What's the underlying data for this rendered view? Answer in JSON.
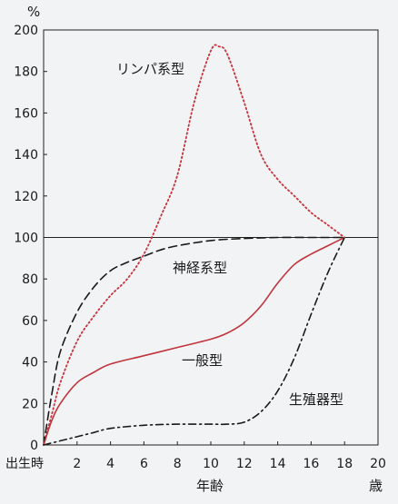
{
  "chart_data": {
    "type": "line",
    "ylabel_unit": "%",
    "xlabel": "年齢",
    "x_unit_label": "歳",
    "x_origin_label": "出生時",
    "xlim": [
      0,
      20
    ],
    "ylim": [
      0,
      200
    ],
    "x_ticks": [
      2,
      4,
      6,
      8,
      10,
      12,
      14,
      16,
      18,
      20
    ],
    "y_ticks": [
      0,
      20,
      40,
      60,
      80,
      100,
      120,
      140,
      160,
      180,
      200
    ],
    "reference_line": 100,
    "series": [
      {
        "name": "リンパ系型",
        "color": "#c8323c",
        "style": "dotted",
        "x": [
          0,
          0.5,
          1,
          2,
          3,
          4,
          5,
          6,
          7,
          8,
          9,
          10,
          10.5,
          11,
          12,
          13,
          14,
          15,
          16,
          17,
          18
        ],
        "y": [
          0,
          15,
          30,
          50,
          62,
          72,
          80,
          92,
          110,
          130,
          165,
          190,
          192,
          188,
          165,
          140,
          128,
          120,
          112,
          106,
          100
        ]
      },
      {
        "name": "神経系型",
        "color": "#1a1a1a",
        "style": "dashed",
        "x": [
          0,
          0.5,
          1,
          2,
          3,
          4,
          5,
          6,
          7,
          8,
          10,
          12,
          14,
          16,
          18
        ],
        "y": [
          0,
          25,
          45,
          64,
          76,
          84,
          88,
          91,
          94,
          96,
          98.5,
          99.5,
          100,
          100,
          100
        ]
      },
      {
        "name": "一般型",
        "color": "#c0343d",
        "style": "solid",
        "x": [
          0,
          0.5,
          1,
          2,
          3,
          4,
          6,
          8,
          10,
          11,
          12,
          13,
          14,
          15,
          16,
          17,
          18
        ],
        "y": [
          0,
          12,
          20,
          30,
          35,
          39,
          43,
          47,
          51,
          54,
          59,
          67,
          78,
          87,
          92,
          96,
          100
        ]
      },
      {
        "name": "生殖器型",
        "color": "#1a1a1a",
        "style": "dashdot",
        "x": [
          0,
          1,
          2,
          3,
          4,
          6,
          8,
          10,
          11,
          12,
          13,
          14,
          15,
          16,
          17,
          18
        ],
        "y": [
          0,
          2,
          4,
          6,
          8,
          9.5,
          10,
          10,
          10,
          11,
          16,
          26,
          42,
          63,
          83,
          100
        ]
      }
    ]
  }
}
